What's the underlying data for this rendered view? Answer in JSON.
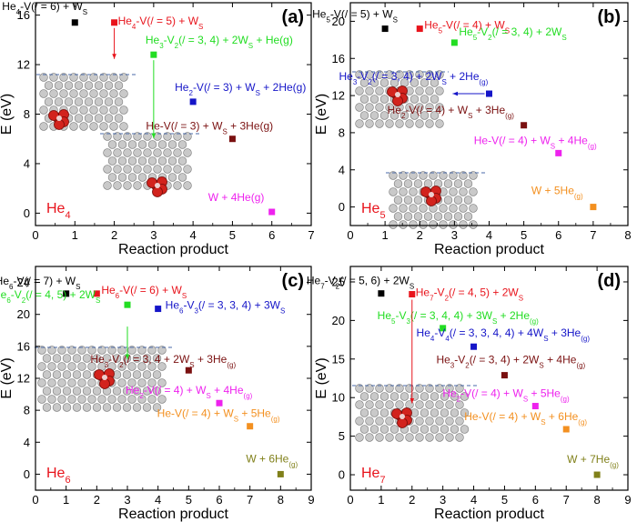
{
  "figure": {
    "x_label": "Reaction product",
    "y_label": "E (eV)"
  },
  "chart_data": [
    {
      "type": "scatter",
      "panel": "(a)",
      "cluster": "He4",
      "cluster_text": "He",
      "cluster_sub": "4",
      "xlim": [
        0,
        7
      ],
      "ylim": [
        -1,
        17
      ],
      "xticks": [
        0,
        1,
        2,
        3,
        4,
        5,
        6,
        7
      ],
      "yticks": [
        0,
        4,
        8,
        12,
        16
      ],
      "xlabel": "Reaction product",
      "ylabel": "E (eV)",
      "points": [
        {
          "x": 1,
          "y": 15.4,
          "color": "#000000",
          "label": "He4-V(l = 6) + WS",
          "parts": [
            {
              "t": "He"
            },
            {
              "t": "4",
              "s": "sub"
            },
            {
              "t": "-V(/ = 6) + W"
            },
            {
              "t": "S",
              "s": "sub"
            }
          ]
        },
        {
          "x": 2,
          "y": 15.4,
          "color": "#e8141c",
          "label": "He4-V(l = 5) + WS",
          "parts": [
            {
              "t": "He"
            },
            {
              "t": "4",
              "s": "sub"
            },
            {
              "t": "-V(/ = 5) + W"
            },
            {
              "t": "S",
              "s": "sub"
            }
          ]
        },
        {
          "x": 3,
          "y": 12.8,
          "color": "#22dd22",
          "label": "He3-V2(l = 3, 4) + 2WS + He(g)",
          "parts": [
            {
              "t": "He"
            },
            {
              "t": "3",
              "s": "sub"
            },
            {
              "t": "-V"
            },
            {
              "t": "2",
              "s": "sub"
            },
            {
              "t": "(/ = 3, 4) + 2W"
            },
            {
              "t": "S",
              "s": "sub"
            },
            {
              "t": " + He(g)"
            }
          ]
        },
        {
          "x": 4,
          "y": 9.0,
          "color": "#1515c8",
          "label": "He2-V(l = 3) + WS + 2He(g)",
          "parts": [
            {
              "t": "He"
            },
            {
              "t": "2",
              "s": "sub"
            },
            {
              "t": "-V(/ = 3) + W"
            },
            {
              "t": "S",
              "s": "sub"
            },
            {
              "t": " + 2He(g)"
            }
          ]
        },
        {
          "x": 5,
          "y": 6.0,
          "color": "#7a1010",
          "label": "He-V(l = 3) + WS + 3He(g)",
          "parts": [
            {
              "t": "He-V(/ = 3) + W"
            },
            {
              "t": "S",
              "s": "sub"
            },
            {
              "t": " + 3He(g)"
            }
          ]
        },
        {
          "x": 6,
          "y": 0.1,
          "color": "#ee22ee",
          "label": "W + 4He(g)",
          "parts": [
            {
              "t": "W + 4He(g)"
            }
          ]
        }
      ]
    },
    {
      "type": "scatter",
      "panel": "(b)",
      "cluster": "He5",
      "cluster_text": "He",
      "cluster_sub": "5",
      "xlim": [
        0,
        8
      ],
      "ylim": [
        -2,
        22
      ],
      "xticks": [
        0,
        1,
        2,
        3,
        4,
        5,
        6,
        7,
        8
      ],
      "yticks": [
        0,
        4,
        8,
        12,
        16,
        20
      ],
      "xlabel": "Reaction product",
      "ylabel": "E (eV)",
      "points": [
        {
          "x": 1,
          "y": 19.2,
          "color": "#000000",
          "label": "He5-V(l = 5) + WS",
          "parts": [
            {
              "t": "He"
            },
            {
              "t": "5",
              "s": "sub"
            },
            {
              "t": "-V(/ = 5) + W"
            },
            {
              "t": "S",
              "s": "sub"
            }
          ]
        },
        {
          "x": 2,
          "y": 19.2,
          "color": "#e8141c",
          "label": "He5-V(l = 4) + WS",
          "parts": [
            {
              "t": "He"
            },
            {
              "t": "5",
              "s": "sub"
            },
            {
              "t": "-V(/ = 4) + W"
            },
            {
              "t": "S",
              "s": "sub"
            }
          ]
        },
        {
          "x": 3,
          "y": 17.7,
          "color": "#22dd22",
          "label": "He5-V2(l = 3, 4) + 2WS",
          "parts": [
            {
              "t": "He"
            },
            {
              "t": "5",
              "s": "sub"
            },
            {
              "t": "-V"
            },
            {
              "t": "2",
              "s": "sub"
            },
            {
              "t": "(/ = 3, 4) + 2W"
            },
            {
              "t": "S",
              "s": "sub"
            }
          ]
        },
        {
          "x": 4,
          "y": 12.2,
          "color": "#1515c8",
          "label": "He3-V2(l = 3, 4) + 2WS + 2He(g)",
          "parts": [
            {
              "t": "He"
            },
            {
              "t": "3",
              "s": "sub"
            },
            {
              "t": "-V"
            },
            {
              "t": "2",
              "s": "sub"
            },
            {
              "t": "(/ = 3, 4) + 2W"
            },
            {
              "t": "S",
              "s": "sub"
            },
            {
              "t": " + 2He"
            },
            {
              "t": "(g)",
              "s": "sub"
            }
          ]
        },
        {
          "x": 5,
          "y": 8.8,
          "color": "#7a1010",
          "label": "He2-V(l = 4) + WS + 3He(g)",
          "parts": [
            {
              "t": "He"
            },
            {
              "t": "2",
              "s": "sub"
            },
            {
              "t": "-V(/ = 4) + W"
            },
            {
              "t": "S",
              "s": "sub"
            },
            {
              "t": " + 3He"
            },
            {
              "t": "(g)",
              "s": "sub"
            }
          ]
        },
        {
          "x": 6,
          "y": 5.8,
          "color": "#ee22ee",
          "label": "He-V(l = 4) + WS + 4He(g)",
          "parts": [
            {
              "t": "He-V(/ = 4) + W"
            },
            {
              "t": "S",
              "s": "sub"
            },
            {
              "t": " + 4He"
            },
            {
              "t": "(g)",
              "s": "sub"
            }
          ]
        },
        {
          "x": 7,
          "y": 0.0,
          "color": "#f39020",
          "label": "W + 5He(g)",
          "parts": [
            {
              "t": "W + 5He"
            },
            {
              "t": "(g)",
              "s": "sub"
            }
          ]
        }
      ]
    },
    {
      "type": "scatter",
      "panel": "(c)",
      "cluster": "He6",
      "cluster_text": "He",
      "cluster_sub": "6",
      "xlim": [
        0,
        9
      ],
      "ylim": [
        -2,
        26
      ],
      "xticks": [
        0,
        1,
        2,
        3,
        4,
        5,
        6,
        7,
        8,
        9
      ],
      "yticks": [
        0,
        4,
        8,
        12,
        16,
        20,
        24
      ],
      "xlabel": "Reaction product",
      "ylabel": "E (eV)",
      "points": [
        {
          "x": 1,
          "y": 22.6,
          "color": "#000000",
          "label": "He6-V(l = 7) + WS",
          "parts": [
            {
              "t": "He"
            },
            {
              "t": "6",
              "s": "sub"
            },
            {
              "t": "-V(/ = 7) + W"
            },
            {
              "t": "S",
              "s": "sub"
            }
          ]
        },
        {
          "x": 2,
          "y": 22.6,
          "color": "#e8141c",
          "label": "He6-V(l = 6) + WS",
          "parts": [
            {
              "t": "He"
            },
            {
              "t": "6",
              "s": "sub"
            },
            {
              "t": "-V(/ = 6) + W"
            },
            {
              "t": "S",
              "s": "sub"
            }
          ]
        },
        {
          "x": 3,
          "y": 21.2,
          "color": "#22dd22",
          "label": "He6-V2(l = 4, 5) + 2WS",
          "parts": [
            {
              "t": "He"
            },
            {
              "t": "6",
              "s": "sub"
            },
            {
              "t": "-V"
            },
            {
              "t": "2",
              "s": "sub"
            },
            {
              "t": "(/ = 4, 5) + 2W"
            },
            {
              "t": "S",
              "s": "sub"
            }
          ]
        },
        {
          "x": 4,
          "y": 20.7,
          "color": "#1515c8",
          "label": "He6-V3(l = 3, 3, 4) + 3WS",
          "parts": [
            {
              "t": "He"
            },
            {
              "t": "6",
              "s": "sub"
            },
            {
              "t": "-V"
            },
            {
              "t": "3",
              "s": "sub"
            },
            {
              "t": "(/ = 3, 3, 4) + 3W"
            },
            {
              "t": "S",
              "s": "sub"
            }
          ]
        },
        {
          "x": 5,
          "y": 13.0,
          "color": "#7a1010",
          "label": "He3-V2(l = 3, 4 + 2WS + 3He(g)",
          "parts": [
            {
              "t": "He"
            },
            {
              "t": "3",
              "s": "sub"
            },
            {
              "t": "-V"
            },
            {
              "t": "2",
              "s": "sub"
            },
            {
              "t": "(/ = 3, 4 + 2W"
            },
            {
              "t": "S",
              "s": "sub"
            },
            {
              "t": " + 3He"
            },
            {
              "t": "(g)",
              "s": "sub"
            }
          ]
        },
        {
          "x": 6,
          "y": 8.9,
          "color": "#ee22ee",
          "label": "He2-V(l = 4) + WS + 4He(g)",
          "parts": [
            {
              "t": "He"
            },
            {
              "t": "2",
              "s": "sub"
            },
            {
              "t": "-V(/ = 4) + W"
            },
            {
              "t": "S",
              "s": "sub"
            },
            {
              "t": " + 4He"
            },
            {
              "t": "(g)",
              "s": "sub"
            }
          ]
        },
        {
          "x": 7,
          "y": 6.0,
          "color": "#f39020",
          "label": "He-V(l = 4) + WS + 5He(g)",
          "parts": [
            {
              "t": "He-V(/ = 4) + W"
            },
            {
              "t": "S",
              "s": "sub"
            },
            {
              "t": " + 5He"
            },
            {
              "t": "(g)",
              "s": "sub"
            }
          ]
        },
        {
          "x": 8,
          "y": 0.0,
          "color": "#80801a",
          "label": "W + 6He(g)",
          "parts": [
            {
              "t": "W + 6He"
            },
            {
              "t": "(g)",
              "s": "sub"
            }
          ]
        }
      ]
    },
    {
      "type": "scatter",
      "panel": "(d)",
      "cluster": "He7",
      "cluster_text": "He",
      "cluster_sub": "7",
      "xlim": [
        0,
        9
      ],
      "ylim": [
        -2,
        27
      ],
      "xticks": [
        0,
        1,
        2,
        3,
        4,
        5,
        6,
        7,
        8,
        9
      ],
      "yticks": [
        0,
        5,
        10,
        15,
        20,
        25
      ],
      "xlabel": "Reaction product",
      "ylabel": "E (eV)",
      "points": [
        {
          "x": 1,
          "y": 23.5,
          "color": "#000000",
          "label": "He7-V2(l = 5, 6) + 2WS",
          "parts": [
            {
              "t": "He"
            },
            {
              "t": "7",
              "s": "sub"
            },
            {
              "t": "-V"
            },
            {
              "t": "2",
              "s": "sub"
            },
            {
              "t": "(/ = 5, 6) + 2W"
            },
            {
              "t": "S",
              "s": "sub"
            }
          ]
        },
        {
          "x": 2,
          "y": 23.4,
          "color": "#e8141c",
          "label": "He7-V2(l = 4, 5) + 2WS",
          "parts": [
            {
              "t": "He"
            },
            {
              "t": "7",
              "s": "sub"
            },
            {
              "t": "-V"
            },
            {
              "t": "2",
              "s": "sub"
            },
            {
              "t": "(/ = 4, 5) + 2W"
            },
            {
              "t": "S",
              "s": "sub"
            }
          ]
        },
        {
          "x": 3,
          "y": 19.0,
          "color": "#22dd22",
          "label": "He5-V3(l = 3, 4, 4) + 3WS + 2He(g)",
          "parts": [
            {
              "t": "He"
            },
            {
              "t": "5",
              "s": "sub"
            },
            {
              "t": "-V"
            },
            {
              "t": "3",
              "s": "sub"
            },
            {
              "t": "(/ = 3, 4, 4) + 3W"
            },
            {
              "t": "S",
              "s": "sub"
            },
            {
              "t": " + 2He"
            },
            {
              "t": "(g)",
              "s": "sub"
            }
          ]
        },
        {
          "x": 4,
          "y": 16.6,
          "color": "#1515c8",
          "label": "He4-V4(l = 3, 3, 4, 4) + 4WS + 3He(g)",
          "parts": [
            {
              "t": "He"
            },
            {
              "t": "4",
              "s": "sub"
            },
            {
              "t": "-V"
            },
            {
              "t": "4",
              "s": "sub"
            },
            {
              "t": "(/ = 3, 3, 4, 4) + 4W"
            },
            {
              "t": "S",
              "s": "sub"
            },
            {
              "t": " + 3He"
            },
            {
              "t": "(g)",
              "s": "sub"
            }
          ]
        },
        {
          "x": 5,
          "y": 12.9,
          "color": "#7a1010",
          "label": "He3-V2(l = 3, 4) + 2WS + 4He(g)",
          "parts": [
            {
              "t": "He"
            },
            {
              "t": "3",
              "s": "sub"
            },
            {
              "t": "-V"
            },
            {
              "t": "2",
              "s": "sub"
            },
            {
              "t": "(/ = 3, 4) + 2W"
            },
            {
              "t": "S",
              "s": "sub"
            },
            {
              "t": " + 4He"
            },
            {
              "t": "(g)",
              "s": "sub"
            }
          ]
        },
        {
          "x": 6,
          "y": 8.9,
          "color": "#ee22ee",
          "label": "He2-V(l = 4) + WS + 5He(g)",
          "parts": [
            {
              "t": "He"
            },
            {
              "t": "2",
              "s": "sub"
            },
            {
              "t": "-V(/ = 4) + W"
            },
            {
              "t": "S",
              "s": "sub"
            },
            {
              "t": " + 5He"
            },
            {
              "t": "(g)",
              "s": "sub"
            }
          ]
        },
        {
          "x": 7,
          "y": 5.9,
          "color": "#f39020",
          "label": "He-V(l = 4) + WS + 6He(g)",
          "parts": [
            {
              "t": "He-V(/ = 4) + W"
            },
            {
              "t": "S",
              "s": "sub"
            },
            {
              "t": " + 6He"
            },
            {
              "t": "(g)",
              "s": "sub"
            }
          ]
        },
        {
          "x": 8,
          "y": 0.0,
          "color": "#80801a",
          "label": "W + 7He(g)",
          "parts": [
            {
              "t": "W + 7He"
            },
            {
              "t": "(g)",
              "s": "sub"
            }
          ]
        }
      ]
    }
  ]
}
